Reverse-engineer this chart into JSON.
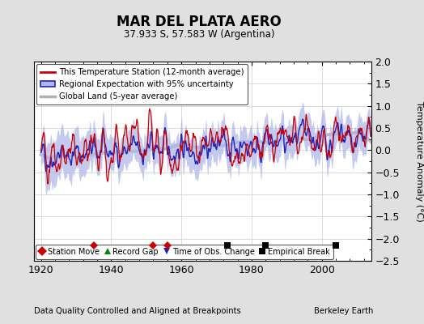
{
  "title": "MAR DEL PLATA AERO",
  "subtitle": "37.933 S, 57.583 W (Argentina)",
  "ylabel": "Temperature Anomaly (°C)",
  "xlabel_note": "Data Quality Controlled and Aligned at Breakpoints",
  "credit": "Berkeley Earth",
  "ylim": [
    -2.5,
    2.0
  ],
  "yticks": [
    -2.5,
    -2.0,
    -1.5,
    -1.0,
    -0.5,
    0.0,
    0.5,
    1.0,
    1.5,
    2.0
  ],
  "xlim": [
    1918,
    2014
  ],
  "xticks": [
    1920,
    1940,
    1960,
    1980,
    2000
  ],
  "station_moves": [
    1935,
    1952,
    1956
  ],
  "empirical_breaks": [
    1973,
    1984,
    2004
  ],
  "time_obs_changes": [],
  "record_gaps": [],
  "bg_color": "#e0e0e0",
  "plot_bg_color": "#ffffff",
  "red_color": "#cc0000",
  "blue_color": "#2222bb",
  "blue_fill_color": "#b0b8e8",
  "gray_color": "#b0b0b0",
  "seed": 42
}
